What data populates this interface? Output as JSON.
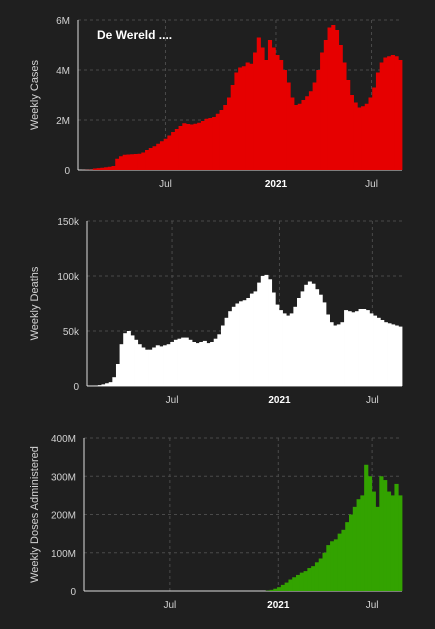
{
  "charts": {
    "cases": {
      "title": "De Wereld ....",
      "ylabel": "Weekly Cases",
      "yticks": [
        "0",
        "2M",
        "4M",
        "6M"
      ],
      "xticks": [
        "Jul",
        "2021",
        "Jul"
      ]
    },
    "deaths": {
      "title": "",
      "ylabel": "Weekly Deaths",
      "yticks": [
        "0",
        "50k",
        "100k",
        "150k"
      ],
      "xticks": [
        "Jul",
        "2021",
        "Jul"
      ]
    },
    "doses": {
      "title": "",
      "ylabel": "Weekly Doses Administered",
      "yticks": [
        "0",
        "100M",
        "200M",
        "300M",
        "400M"
      ],
      "xticks": [
        "Jul",
        "2021",
        "Jul"
      ]
    }
  },
  "colors": {
    "background": "#1f1f1f",
    "grid": "#4a4a4a",
    "cases": "#e60000",
    "deaths": "#ffffff",
    "doses": "#33a300"
  },
  "chart_data": [
    {
      "type": "bar",
      "title": "De Wereld ....",
      "xlabel": "",
      "ylabel": "Weekly Cases",
      "ylim": [
        0,
        6000000
      ],
      "x_start": "2020-01-06",
      "x_ticks": [
        "Jul",
        "2021",
        "Jul"
      ],
      "values": [
        0,
        3000,
        7000,
        9000,
        60000,
        75000,
        90000,
        110000,
        130000,
        160000,
        450000,
        550000,
        610000,
        620000,
        630000,
        640000,
        650000,
        700000,
        800000,
        880000,
        950000,
        1050000,
        1150000,
        1250000,
        1380000,
        1520000,
        1640000,
        1760000,
        1870000,
        1840000,
        1820000,
        1850000,
        1890000,
        1960000,
        2050000,
        2080000,
        2120000,
        2250000,
        2400000,
        2600000,
        2900000,
        3400000,
        3900000,
        4100000,
        4150000,
        4300000,
        4250000,
        4700000,
        5300000,
        4900000,
        4400000,
        5200000,
        4900000,
        4600000,
        4400000,
        4000000,
        3500000,
        2900000,
        2600000,
        2650000,
        2800000,
        2950000,
        3150000,
        3500000,
        4000000,
        4700000,
        5200000,
        5700000,
        5800000,
        5600000,
        5000000,
        4300000,
        3600000,
        3000000,
        2700000,
        2500000,
        2550000,
        2650000,
        2900000,
        3300000,
        3900000,
        4300000,
        4500000,
        4550000,
        4600000,
        4550000,
        4400000
      ]
    },
    {
      "type": "bar",
      "title": "",
      "xlabel": "",
      "ylabel": "Weekly Deaths",
      "ylim": [
        0,
        150000
      ],
      "x_start": "2020-01-06",
      "x_ticks": [
        "Jul",
        "2021",
        "Jul"
      ],
      "values": [
        200,
        300,
        400,
        800,
        1500,
        2500,
        3500,
        8000,
        20000,
        38000,
        48000,
        50000,
        46000,
        42000,
        38000,
        35000,
        33000,
        33000,
        35000,
        37000,
        36000,
        37000,
        38000,
        40000,
        42000,
        43000,
        44000,
        44000,
        42000,
        40000,
        39000,
        40000,
        41000,
        39000,
        40000,
        43000,
        47000,
        55000,
        62000,
        68000,
        72000,
        75000,
        77000,
        78000,
        80000,
        84000,
        86000,
        94000,
        100000,
        101000,
        97000,
        85000,
        74000,
        69000,
        66000,
        64000,
        66000,
        72000,
        80000,
        86000,
        92000,
        95000,
        93000,
        88000,
        83000,
        76000,
        65000,
        58000,
        55000,
        56000,
        58000,
        69000,
        68000,
        67000,
        68000,
        70000,
        70000,
        69000,
        66000,
        64000,
        62000,
        60000,
        58000,
        57000,
        56000,
        55000,
        54000
      ],
      "values_note": "weekly deaths"
    },
    {
      "type": "bar",
      "title": "",
      "xlabel": "",
      "ylabel": "Weekly Doses Administered",
      "ylim": [
        0,
        400000000
      ],
      "x_start": "2020-01-06",
      "x_ticks": [
        "Jul",
        "2021",
        "Jul"
      ],
      "values": [
        0,
        0,
        0,
        0,
        0,
        0,
        0,
        0,
        0,
        0,
        0,
        0,
        0,
        0,
        0,
        0,
        0,
        0,
        0,
        0,
        0,
        0,
        0,
        0,
        0,
        0,
        0,
        0,
        0,
        0,
        0,
        0,
        0,
        0,
        0,
        0,
        0,
        0,
        0,
        0,
        0,
        0,
        0,
        0,
        0,
        0,
        0,
        0,
        1000000,
        3000000,
        6000000,
        10000000,
        16000000,
        22000000,
        30000000,
        36000000,
        42000000,
        48000000,
        52000000,
        60000000,
        65000000,
        75000000,
        85000000,
        100000000,
        120000000,
        130000000,
        135000000,
        150000000,
        160000000,
        180000000,
        200000000,
        220000000,
        240000000,
        250000000,
        330000000,
        300000000,
        260000000,
        220000000,
        300000000,
        290000000,
        260000000,
        250000000,
        280000000,
        250000000
      ]
    }
  ]
}
